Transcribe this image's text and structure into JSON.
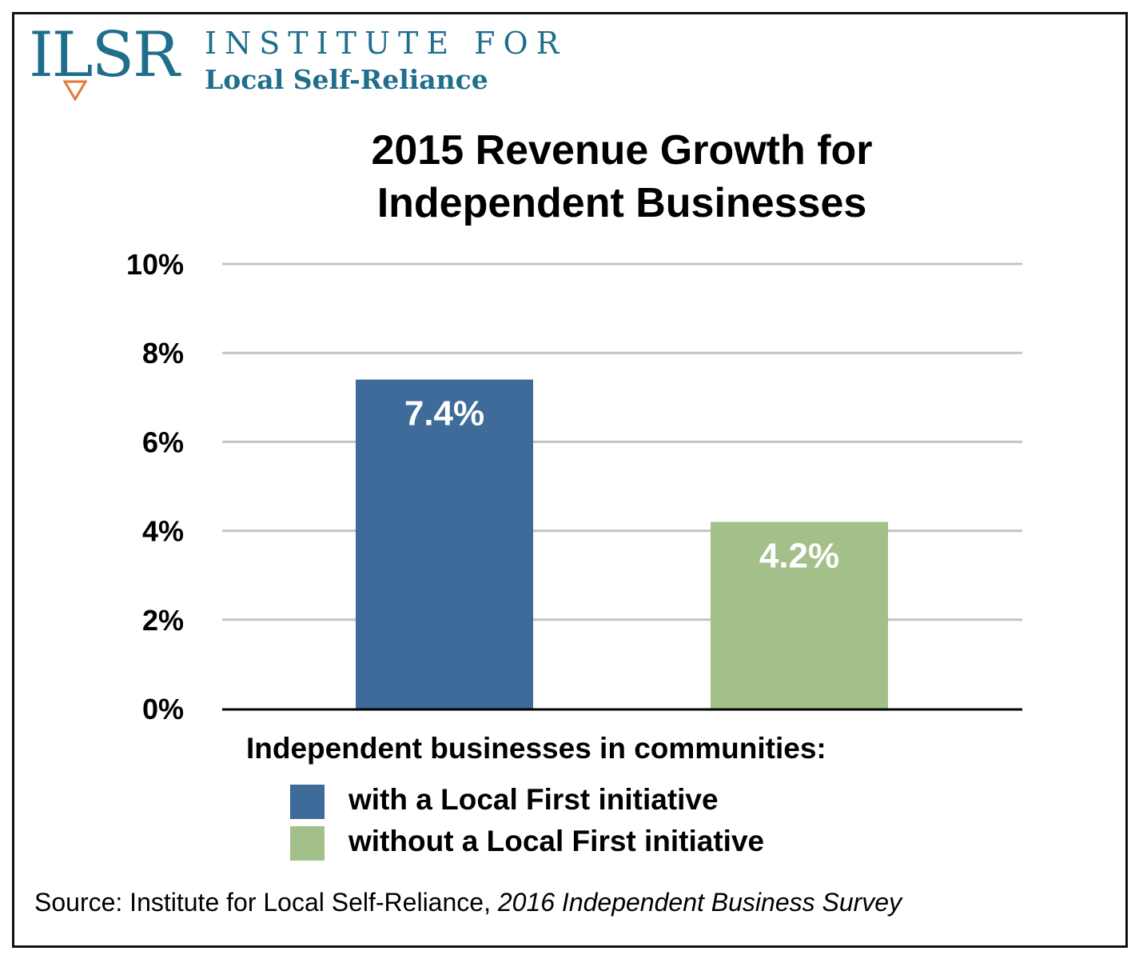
{
  "logo": {
    "mark": "ILSR",
    "line1": "INSTITUTE FOR",
    "line2": "Local Self-Reliance",
    "color": "#1f6e8c",
    "accent": "#e07a3a"
  },
  "chart_data": {
    "type": "bar",
    "title_line1": "2015 Revenue Growth for",
    "title_line2": "Independent Businesses",
    "categories": [
      "with a Local First initiative",
      "without a Local First initiative"
    ],
    "values": [
      7.4,
      4.2
    ],
    "data_labels": [
      "7.4%",
      "4.2%"
    ],
    "colors": [
      "#3e6b99",
      "#a3c08a"
    ],
    "ylim": [
      0,
      10
    ],
    "yticks": [
      0,
      2,
      4,
      6,
      8,
      10
    ],
    "ytick_labels": [
      "0%",
      "2%",
      "4%",
      "6%",
      "8%",
      "10%"
    ],
    "grid": true,
    "xlabel": "",
    "ylabel": ""
  },
  "legend": {
    "heading": "Independent businesses in communities:",
    "items": [
      {
        "label": "with a Local First initiative",
        "color": "#3e6b99"
      },
      {
        "label": "without a Local First initiative",
        "color": "#a3c08a"
      }
    ]
  },
  "source": {
    "prefix": "Source: Institute for Local Self-Reliance, ",
    "title": "2016 Independent Business Survey"
  }
}
